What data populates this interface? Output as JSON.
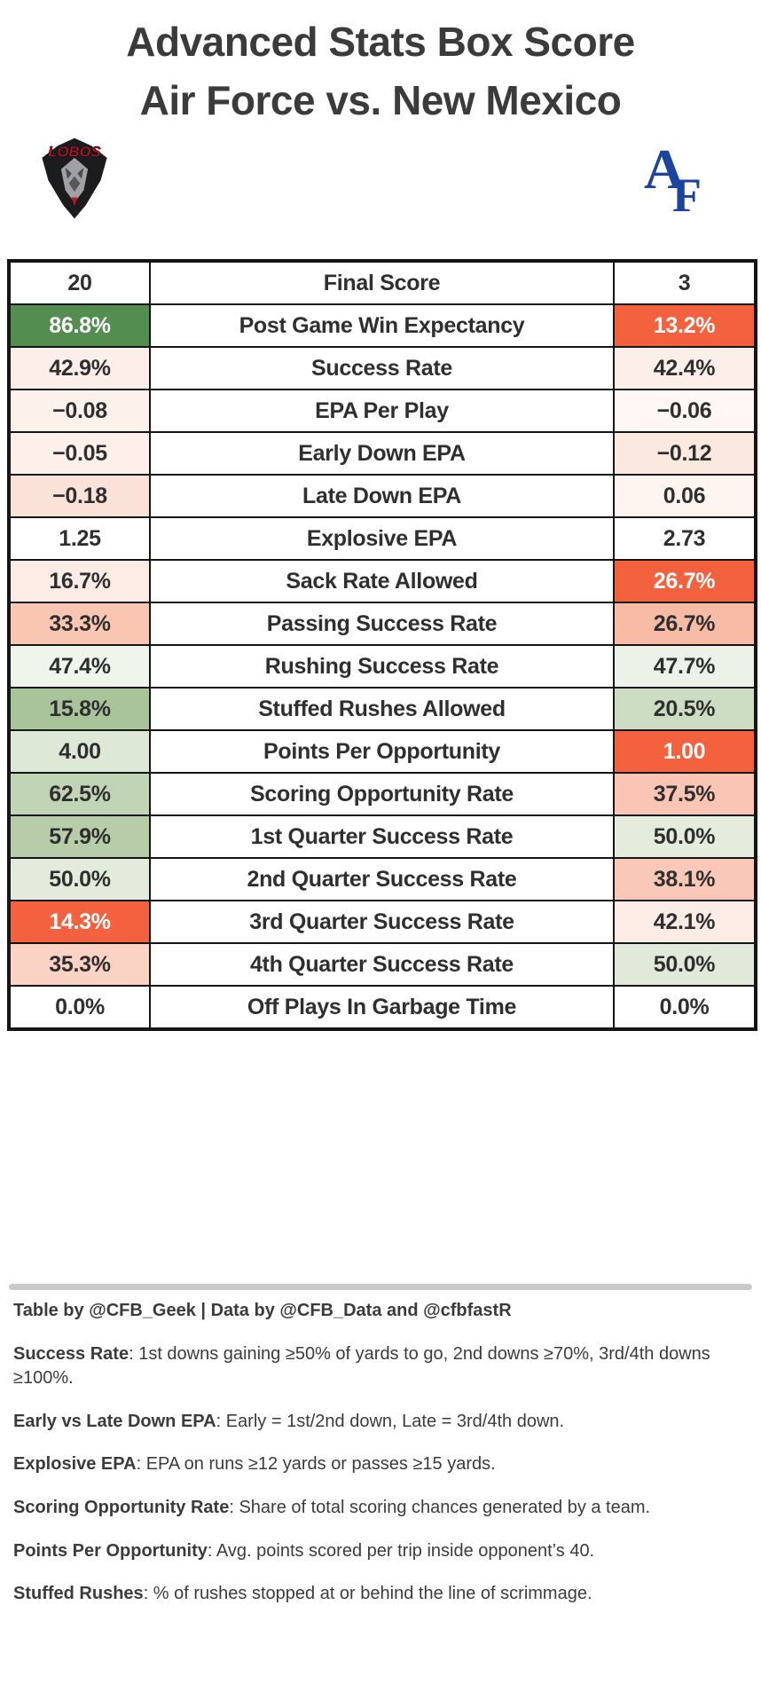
{
  "title": {
    "line1": "Advanced Stats Box Score",
    "line2": "Air Force vs. New Mexico"
  },
  "teams": {
    "left": "New Mexico",
    "right": "Air Force",
    "left_logo_text": "LOBOS",
    "right_logo_text_a": "A",
    "right_logo_text_f": "F"
  },
  "colors": {
    "strong_green": "#538d50",
    "strong_red": "#f4613e",
    "text_dark": "#2f2f2f",
    "text_white": "#ffffff",
    "lobos_red": "#c8102e",
    "af_blue": "#1c449c"
  },
  "table": {
    "rows": [
      {
        "stat": "Final Score",
        "nm": "20",
        "af": "3",
        "nm_bg": "#ffffff",
        "af_bg": "#ffffff"
      },
      {
        "stat": "Post Game Win Expectancy",
        "nm": "86.8%",
        "af": "13.2%",
        "nm_bg": "#538d50",
        "af_bg": "#f4613e",
        "nm_fg": "#ffffff",
        "af_fg": "#ffffff"
      },
      {
        "stat": "Success Rate",
        "nm": "42.9%",
        "af": "42.4%",
        "nm_bg": "#fcefe9",
        "af_bg": "#fcefe9"
      },
      {
        "stat": "EPA Per Play",
        "nm": "−0.08",
        "af": "−0.06",
        "nm_bg": "#fdf1ec",
        "af_bg": "#fef7f4"
      },
      {
        "stat": "Early Down EPA",
        "nm": "−0.05",
        "af": "−0.12",
        "nm_bg": "#fdf0ea",
        "af_bg": "#fbe9e0"
      },
      {
        "stat": "Late Down EPA",
        "nm": "−0.18",
        "af": "0.06",
        "nm_bg": "#fbe2d9",
        "af_bg": "#fef5f1"
      },
      {
        "stat": "Explosive EPA",
        "nm": "1.25",
        "af": "2.73",
        "nm_bg": "#ffffff",
        "af_bg": "#ffffff"
      },
      {
        "stat": "Sack Rate Allowed",
        "nm": "16.7%",
        "af": "26.7%",
        "nm_bg": "#fdece5",
        "af_bg": "#f4613e",
        "af_fg": "#ffffff"
      },
      {
        "stat": "Passing Success Rate",
        "nm": "33.3%",
        "af": "26.7%",
        "nm_bg": "#f9c6b2",
        "af_bg": "#f8bba6"
      },
      {
        "stat": "Rushing Success Rate",
        "nm": "47.4%",
        "af": "47.7%",
        "nm_bg": "#f0f5ec",
        "af_bg": "#ecf2e7"
      },
      {
        "stat": "Stuffed Rushes Allowed",
        "nm": "15.8%",
        "af": "20.5%",
        "nm_bg": "#a9c39a",
        "af_bg": "#cdddc4"
      },
      {
        "stat": "Points Per Opportunity",
        "nm": "4.00",
        "af": "1.00",
        "nm_bg": "#dee8d6",
        "af_bg": "#f4613e",
        "af_fg": "#ffffff"
      },
      {
        "stat": "Scoring Opportunity Rate",
        "nm": "62.5%",
        "af": "37.5%",
        "nm_bg": "#c2d4b6",
        "af_bg": "#fac5b5"
      },
      {
        "stat": "1st Quarter Success Rate",
        "nm": "57.9%",
        "af": "50.0%",
        "nm_bg": "#b7cca9",
        "af_bg": "#e4ecde"
      },
      {
        "stat": "2nd Quarter Success Rate",
        "nm": "50.0%",
        "af": "38.1%",
        "nm_bg": "#e2ebdc",
        "af_bg": "#f9c8b8"
      },
      {
        "stat": "3rd Quarter Success Rate",
        "nm": "14.3%",
        "af": "42.1%",
        "nm_bg": "#f4613e",
        "af_bg": "#fdece6",
        "nm_fg": "#ffffff"
      },
      {
        "stat": "4th Quarter Success Rate",
        "nm": "35.3%",
        "af": "50.0%",
        "nm_bg": "#fbd3c5",
        "af_bg": "#e0e9da"
      },
      {
        "stat": "Off Plays In Garbage Time",
        "nm": "0.0%",
        "af": "0.0%",
        "nm_bg": "#ffffff",
        "af_bg": "#ffffff"
      }
    ]
  },
  "footer": {
    "attribution": "Table by @CFB_Geek | Data by @CFB_Data and @cfbfastR",
    "notes": [
      {
        "term": "Success Rate",
        "text": ": 1st downs gaining ≥50% of yards to go, 2nd downs ≥70%, 3rd/4th downs ≥100%."
      },
      {
        "term": "Early vs Late Down EPA",
        "text": ": Early = 1st/2nd down, Late = 3rd/4th down."
      },
      {
        "term": "Explosive EPA",
        "text": ": EPA on runs ≥12 yards or passes ≥15 yards."
      },
      {
        "term": "Scoring Opportunity Rate",
        "text": ": Share of total scoring chances generated by a team."
      },
      {
        "term": "Points Per Opportunity",
        "text": ": Avg. points scored per trip inside opponent’s 40."
      },
      {
        "term": "Stuffed Rushes",
        "text": ": % of rushes stopped at or behind the line of scrimmage."
      }
    ]
  },
  "chart_data": {
    "type": "table",
    "title": "Advanced Stats Box Score — Air Force vs. New Mexico",
    "categories": [
      "Final Score",
      "Post Game Win Expectancy",
      "Success Rate",
      "EPA Per Play",
      "Early Down EPA",
      "Late Down EPA",
      "Explosive EPA",
      "Sack Rate Allowed",
      "Passing Success Rate",
      "Rushing Success Rate",
      "Stuffed Rushes Allowed",
      "Points Per Opportunity",
      "Scoring Opportunity Rate",
      "1st Quarter Success Rate",
      "2nd Quarter Success Rate",
      "3rd Quarter Success Rate",
      "4th Quarter Success Rate",
      "Off Plays In Garbage Time"
    ],
    "series": [
      {
        "name": "New Mexico",
        "values": [
          "20",
          "86.8%",
          "42.9%",
          "−0.08",
          "−0.05",
          "−0.18",
          "1.25",
          "16.7%",
          "33.3%",
          "47.4%",
          "15.8%",
          "4.00",
          "62.5%",
          "57.9%",
          "50.0%",
          "14.3%",
          "35.3%",
          "0.0%"
        ]
      },
      {
        "name": "Air Force",
        "values": [
          "3",
          "13.2%",
          "42.4%",
          "−0.06",
          "−0.12",
          "0.06",
          "2.73",
          "26.7%",
          "26.7%",
          "47.7%",
          "20.5%",
          "1.00",
          "37.5%",
          "50.0%",
          "38.1%",
          "42.1%",
          "50.0%",
          "0.0%"
        ]
      }
    ]
  }
}
